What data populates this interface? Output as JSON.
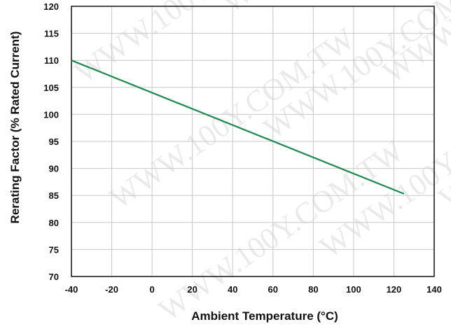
{
  "chart_data": {
    "type": "line",
    "xlabel": "Ambient Temperature (°C)",
    "ylabel": "Rerating Factor (% Rated Current)",
    "xlim": [
      -40,
      140
    ],
    "ylim": [
      70,
      120
    ],
    "x_ticks": [
      -40,
      -20,
      0,
      20,
      40,
      60,
      80,
      100,
      120,
      140
    ],
    "y_ticks": [
      70,
      75,
      80,
      85,
      90,
      95,
      100,
      105,
      110,
      115,
      120
    ],
    "x_tick_labels": [
      "-40",
      "-20",
      "0",
      "20",
      "40",
      "60",
      "80",
      "100",
      "120",
      "140"
    ],
    "y_tick_labels": [
      "70",
      "75",
      "80",
      "85",
      "90",
      "95",
      "100",
      "105",
      "110",
      "115",
      "120"
    ],
    "grid": true,
    "series": [
      {
        "x": [
          -40,
          125
        ],
        "y": [
          110,
          85.3
        ],
        "color": "#1a8a4e"
      }
    ],
    "watermark": "WWW.100Y.COM.TW"
  }
}
